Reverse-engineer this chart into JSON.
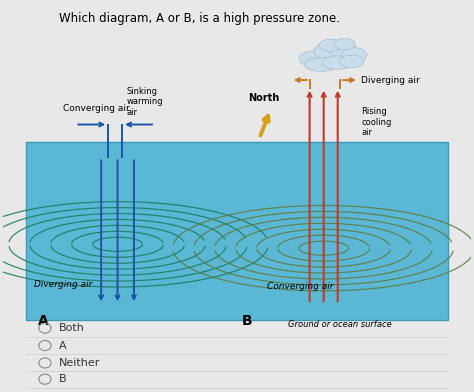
{
  "title": "Which diagram, A or B, is a high pressure zone.",
  "title_fontsize": 8.5,
  "bg_color": "#e8e8e8",
  "diagram_bg": "#5ab8d4",
  "label_A": "A",
  "label_B": "B",
  "text_converging_air_A": "Converging air",
  "text_sinking": "Sinking\nwarming\nair",
  "text_diverging_air_A": "Diverging air",
  "text_diverging_air_B": "Diverging air",
  "text_north": "North",
  "text_rising": "Rising\ncooling\nair",
  "text_converging_air_B": "Converging air",
  "text_ground": "Ground or ocean surface",
  "options": [
    "Both",
    "A",
    "Neither",
    "B"
  ],
  "arrow_color_blue": "#1a55aa",
  "arrow_color_red": "#c0392b",
  "cloud_color": "#b8d4ea",
  "spiral_color_A": "#1a7a5e",
  "spiral_color_B": "#5a7a3e",
  "north_color": "#d4a017"
}
